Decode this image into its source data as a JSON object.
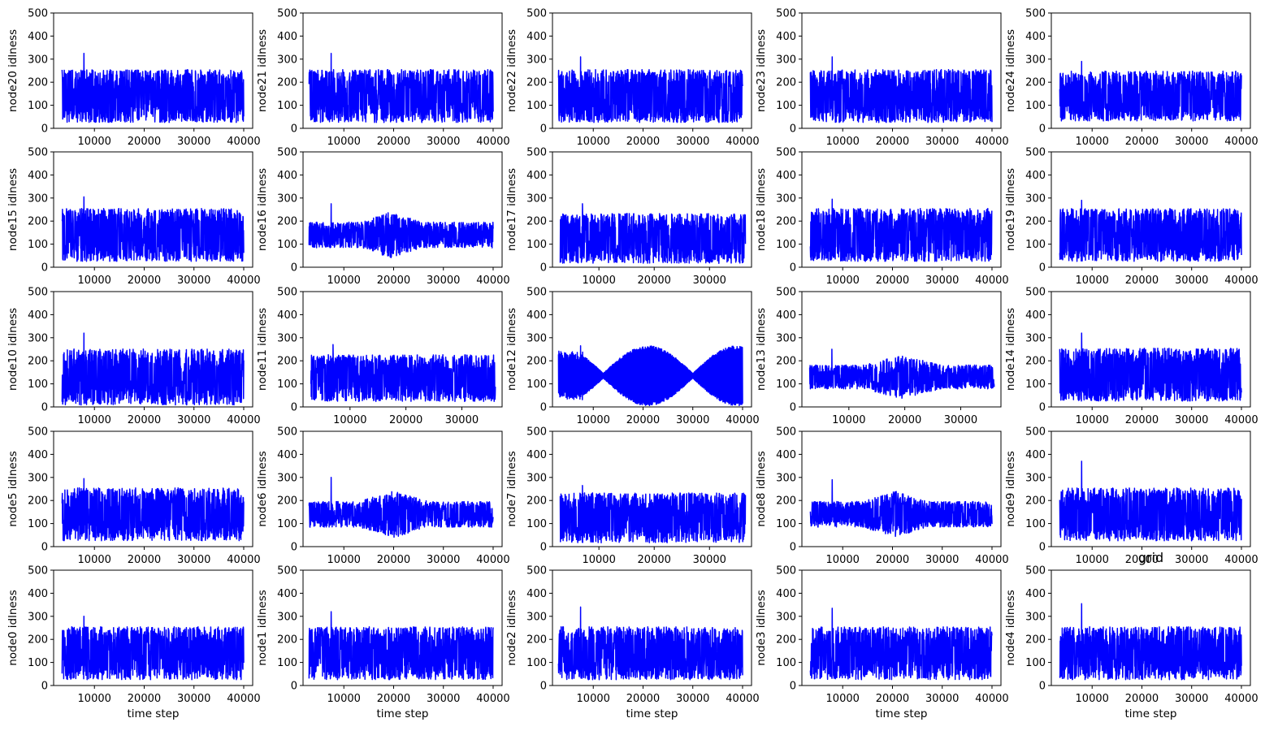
{
  "figure": {
    "line_color": "#0000ff",
    "background": "#ffffff"
  },
  "chart_data": [
    {
      "type": "line",
      "ylabel": "node20 idlness",
      "xlabel": "",
      "title": "",
      "ylim": [
        0,
        500
      ],
      "yticks": [
        0,
        100,
        200,
        300,
        400,
        500
      ],
      "xticks": [
        10000,
        20000,
        30000,
        40000
      ],
      "xlim": [
        1800,
        41800
      ],
      "x_range": [
        3500,
        40000
      ],
      "signal": {
        "base": 140,
        "amp": 85,
        "peak": 325,
        "envelope": "uniform"
      }
    },
    {
      "type": "line",
      "ylabel": "node21 idlness",
      "xlabel": "",
      "title": "",
      "ylim": [
        0,
        500
      ],
      "yticks": [
        0,
        100,
        200,
        300,
        400,
        500
      ],
      "xticks": [
        10000,
        20000,
        30000,
        40000
      ],
      "xlim": [
        1800,
        41800
      ],
      "x_range": [
        3000,
        40000
      ],
      "signal": {
        "base": 140,
        "amp": 85,
        "peak": 325,
        "envelope": "uniform"
      }
    },
    {
      "type": "line",
      "ylabel": "node22 idlness",
      "xlabel": "",
      "title": "",
      "ylim": [
        0,
        500
      ],
      "yticks": [
        0,
        100,
        200,
        300,
        400,
        500
      ],
      "xticks": [
        10000,
        20000,
        30000,
        40000
      ],
      "xlim": [
        1800,
        41800
      ],
      "x_range": [
        3000,
        40000
      ],
      "signal": {
        "base": 140,
        "amp": 85,
        "peak": 310,
        "envelope": "uniform"
      }
    },
    {
      "type": "line",
      "ylabel": "node23 idlness",
      "xlabel": "",
      "title": "",
      "ylim": [
        0,
        500
      ],
      "yticks": [
        0,
        100,
        200,
        300,
        400,
        500
      ],
      "xticks": [
        10000,
        20000,
        30000,
        40000
      ],
      "xlim": [
        1800,
        41800
      ],
      "x_range": [
        3500,
        40000
      ],
      "signal": {
        "base": 140,
        "amp": 85,
        "peak": 310,
        "envelope": "uniform"
      }
    },
    {
      "type": "line",
      "ylabel": "node24 idlness",
      "xlabel": "",
      "title": "",
      "ylim": [
        0,
        500
      ],
      "yticks": [
        0,
        100,
        200,
        300,
        400,
        500
      ],
      "xticks": [
        10000,
        20000,
        30000,
        40000
      ],
      "xlim": [
        1800,
        41800
      ],
      "x_range": [
        3500,
        40000
      ],
      "signal": {
        "base": 140,
        "amp": 80,
        "peak": 290,
        "envelope": "uniform"
      }
    },
    {
      "type": "line",
      "ylabel": "node15 idlness",
      "xlabel": "",
      "title": "",
      "ylim": [
        0,
        500
      ],
      "yticks": [
        0,
        100,
        200,
        300,
        400,
        500
      ],
      "xticks": [
        10000,
        20000,
        30000,
        40000
      ],
      "xlim": [
        1800,
        41800
      ],
      "x_range": [
        3500,
        40000
      ],
      "signal": {
        "base": 140,
        "amp": 85,
        "peak": 305,
        "envelope": "uniform"
      }
    },
    {
      "type": "line",
      "ylabel": "node16 idlness",
      "xlabel": "",
      "title": "",
      "ylim": [
        0,
        500
      ],
      "yticks": [
        0,
        100,
        200,
        300,
        400,
        500
      ],
      "xticks": [
        10000,
        20000,
        30000,
        40000
      ],
      "xlim": [
        1800,
        41800
      ],
      "x_range": [
        3000,
        40000
      ],
      "signal": {
        "base": 140,
        "amp": 75,
        "peak": 275,
        "envelope": "diamond",
        "center": 19500,
        "halfwidth": 6000
      }
    },
    {
      "type": "line",
      "ylabel": "node17 idlness",
      "xlabel": "",
      "title": "",
      "ylim": [
        0,
        500
      ],
      "yticks": [
        0,
        100,
        200,
        300,
        400,
        500
      ],
      "xticks": [
        10000,
        20000,
        30000
      ],
      "xlim": [
        1600,
        37600
      ],
      "x_range": [
        3000,
        36500
      ],
      "signal": {
        "base": 125,
        "amp": 80,
        "peak": 275,
        "envelope": "uniform"
      }
    },
    {
      "type": "line",
      "ylabel": "node18 idlness",
      "xlabel": "",
      "title": "",
      "ylim": [
        0,
        500
      ],
      "yticks": [
        0,
        100,
        200,
        300,
        400,
        500
      ],
      "xticks": [
        10000,
        20000,
        30000,
        40000
      ],
      "xlim": [
        1800,
        41800
      ],
      "x_range": [
        3500,
        40000
      ],
      "signal": {
        "base": 140,
        "amp": 85,
        "peak": 295,
        "envelope": "uniform"
      }
    },
    {
      "type": "line",
      "ylabel": "node19 idlness",
      "xlabel": "",
      "title": "",
      "ylim": [
        0,
        500
      ],
      "yticks": [
        0,
        100,
        200,
        300,
        400,
        500
      ],
      "xticks": [
        10000,
        20000,
        30000,
        40000
      ],
      "xlim": [
        1800,
        41800
      ],
      "x_range": [
        3500,
        40000
      ],
      "signal": {
        "base": 140,
        "amp": 85,
        "peak": 290,
        "envelope": "uniform"
      }
    },
    {
      "type": "line",
      "ylabel": "node10 idlness",
      "xlabel": "",
      "title": "",
      "ylim": [
        0,
        500
      ],
      "yticks": [
        0,
        100,
        200,
        300,
        400,
        500
      ],
      "xticks": [
        10000,
        20000,
        30000,
        40000
      ],
      "xlim": [
        1800,
        41800
      ],
      "x_range": [
        3500,
        40000
      ],
      "signal": {
        "base": 130,
        "amp": 90,
        "peak": 320,
        "envelope": "uniform"
      }
    },
    {
      "type": "line",
      "ylabel": "node11 idlness",
      "xlabel": "",
      "title": "",
      "ylim": [
        0,
        500
      ],
      "yticks": [
        0,
        100,
        200,
        300,
        400,
        500
      ],
      "xticks": [
        10000,
        20000,
        30000
      ],
      "xlim": [
        1600,
        37200
      ],
      "x_range": [
        3000,
        36000
      ],
      "signal": {
        "base": 125,
        "amp": 75,
        "peak": 270,
        "envelope": "uniform"
      }
    },
    {
      "type": "line",
      "ylabel": "node12 idlness",
      "xlabel": "",
      "title": "",
      "ylim": [
        0,
        500
      ],
      "yticks": [
        0,
        100,
        200,
        300,
        400,
        500
      ],
      "xticks": [
        10000,
        20000,
        30000,
        40000
      ],
      "xlim": [
        1800,
        41800
      ],
      "x_range": [
        3000,
        40000
      ],
      "signal": {
        "base": 135,
        "amp": 130,
        "peak": 265,
        "envelope": "sine-wave"
      }
    },
    {
      "type": "line",
      "ylabel": "node13 idlness",
      "xlabel": "",
      "title": "",
      "ylim": [
        0,
        500
      ],
      "yticks": [
        0,
        100,
        200,
        300,
        400,
        500
      ],
      "xticks": [
        10000,
        20000,
        30000
      ],
      "xlim": [
        1600,
        37200
      ],
      "x_range": [
        3000,
        36000
      ],
      "signal": {
        "base": 130,
        "amp": 70,
        "peak": 250,
        "envelope": "diamond",
        "center": 19500,
        "halfwidth": 7000
      }
    },
    {
      "type": "line",
      "ylabel": "node14 idlness",
      "xlabel": "",
      "title": "",
      "ylim": [
        0,
        500
      ],
      "yticks": [
        0,
        100,
        200,
        300,
        400,
        500
      ],
      "xticks": [
        10000,
        20000,
        30000,
        40000
      ],
      "xlim": [
        1800,
        41800
      ],
      "x_range": [
        3500,
        40000
      ],
      "signal": {
        "base": 140,
        "amp": 85,
        "peak": 320,
        "envelope": "uniform"
      }
    },
    {
      "type": "line",
      "ylabel": "node5 idlness",
      "xlabel": "",
      "title": "",
      "ylim": [
        0,
        500
      ],
      "yticks": [
        0,
        100,
        200,
        300,
        400,
        500
      ],
      "xticks": [
        10000,
        20000,
        30000,
        40000
      ],
      "xlim": [
        1800,
        41800
      ],
      "x_range": [
        3500,
        40000
      ],
      "signal": {
        "base": 140,
        "amp": 85,
        "peak": 295,
        "envelope": "uniform"
      }
    },
    {
      "type": "line",
      "ylabel": "node6 idlness",
      "xlabel": "",
      "title": "",
      "ylim": [
        0,
        500
      ],
      "yticks": [
        0,
        100,
        200,
        300,
        400,
        500
      ],
      "xticks": [
        10000,
        20000,
        30000,
        40000
      ],
      "xlim": [
        1800,
        41800
      ],
      "x_range": [
        3000,
        40000
      ],
      "signal": {
        "base": 140,
        "amp": 75,
        "peak": 300,
        "envelope": "diamond",
        "center": 20000,
        "halfwidth": 7000
      }
    },
    {
      "type": "line",
      "ylabel": "node7 idlness",
      "xlabel": "",
      "title": "",
      "ylim": [
        0,
        500
      ],
      "yticks": [
        0,
        100,
        200,
        300,
        400,
        500
      ],
      "xticks": [
        10000,
        20000,
        30000
      ],
      "xlim": [
        1600,
        37600
      ],
      "x_range": [
        3000,
        36500
      ],
      "signal": {
        "base": 125,
        "amp": 80,
        "peak": 265,
        "envelope": "uniform"
      }
    },
    {
      "type": "line",
      "ylabel": "node8 idlness",
      "xlabel": "",
      "title": "",
      "ylim": [
        0,
        500
      ],
      "yticks": [
        0,
        100,
        200,
        300,
        400,
        500
      ],
      "xticks": [
        10000,
        20000,
        30000,
        40000
      ],
      "xlim": [
        1800,
        41800
      ],
      "x_range": [
        3500,
        40000
      ],
      "signal": {
        "base": 140,
        "amp": 75,
        "peak": 290,
        "envelope": "diamond",
        "center": 20500,
        "halfwidth": 6500
      }
    },
    {
      "type": "line",
      "ylabel": "node9 idlness",
      "xlabel": "",
      "title": "",
      "ylim": [
        0,
        500
      ],
      "yticks": [
        0,
        100,
        200,
        300,
        400,
        500
      ],
      "xticks": [
        10000,
        20000,
        30000,
        40000
      ],
      "xlim": [
        1800,
        41800
      ],
      "x_range": [
        3500,
        40000
      ],
      "signal": {
        "base": 140,
        "amp": 85,
        "peak": 370,
        "envelope": "uniform"
      }
    },
    {
      "type": "line",
      "ylabel": "node0 idlness",
      "xlabel": "time step",
      "title": "",
      "ylim": [
        0,
        500
      ],
      "yticks": [
        0,
        100,
        200,
        300,
        400,
        500
      ],
      "xticks": [
        10000,
        20000,
        30000,
        40000
      ],
      "xlim": [
        1800,
        41800
      ],
      "x_range": [
        3500,
        40000
      ],
      "signal": {
        "base": 140,
        "amp": 85,
        "peak": 300,
        "envelope": "uniform"
      }
    },
    {
      "type": "line",
      "ylabel": "node1 idlness",
      "xlabel": "time step",
      "title": "",
      "ylim": [
        0,
        500
      ],
      "yticks": [
        0,
        100,
        200,
        300,
        400,
        500
      ],
      "xticks": [
        10000,
        20000,
        30000,
        40000
      ],
      "xlim": [
        1800,
        41800
      ],
      "x_range": [
        3000,
        40000
      ],
      "signal": {
        "base": 140,
        "amp": 85,
        "peak": 320,
        "envelope": "uniform"
      }
    },
    {
      "type": "line",
      "ylabel": "node2 idlness",
      "xlabel": "time step",
      "title": "",
      "ylim": [
        0,
        500
      ],
      "yticks": [
        0,
        100,
        200,
        300,
        400,
        500
      ],
      "xticks": [
        10000,
        20000,
        30000,
        40000
      ],
      "xlim": [
        1800,
        41800
      ],
      "x_range": [
        3000,
        40000
      ],
      "signal": {
        "base": 140,
        "amp": 85,
        "peak": 340,
        "envelope": "uniform"
      }
    },
    {
      "type": "line",
      "ylabel": "node3 idlness",
      "xlabel": "time step",
      "title": "",
      "ylim": [
        0,
        500
      ],
      "yticks": [
        0,
        100,
        200,
        300,
        400,
        500
      ],
      "xticks": [
        10000,
        20000,
        30000,
        40000
      ],
      "xlim": [
        1800,
        41800
      ],
      "x_range": [
        3500,
        40000
      ],
      "signal": {
        "base": 140,
        "amp": 85,
        "peak": 335,
        "envelope": "uniform"
      }
    },
    {
      "type": "line",
      "ylabel": "node4 idlness",
      "xlabel": "time step",
      "title": "grid",
      "ylim": [
        0,
        500
      ],
      "yticks": [
        0,
        100,
        200,
        300,
        400,
        500
      ],
      "xticks": [
        10000,
        20000,
        30000,
        40000
      ],
      "xlim": [
        1800,
        41800
      ],
      "x_range": [
        3500,
        40000
      ],
      "signal": {
        "base": 140,
        "amp": 85,
        "peak": 355,
        "envelope": "uniform"
      }
    }
  ]
}
